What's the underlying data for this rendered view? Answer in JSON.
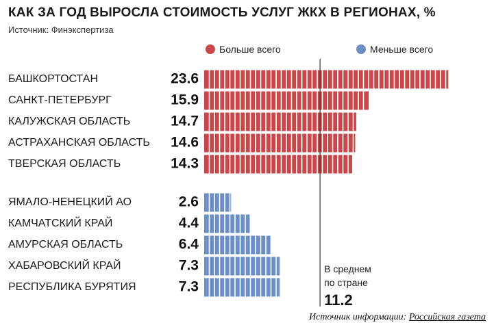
{
  "header": {
    "title": "КАК ЗА ГОД ВЫРОСЛА СТОИМОСТЬ УСЛУГ ЖКХ В РЕГИОНАХ, %",
    "source": "Источник: Финэкспертиза"
  },
  "legend": {
    "most": {
      "label": "Больше всего",
      "color": "#c8474b"
    },
    "least": {
      "label": "Меньше всего",
      "color": "#6b8fc4"
    }
  },
  "average": {
    "label_line1": "В среднем",
    "label_line2": "по стране",
    "value": "11.2"
  },
  "footer": {
    "prefix": "Источник информации: ",
    "link": "Российская газета"
  },
  "chart_data": {
    "type": "bar",
    "orientation": "horizontal",
    "title": "КАК ЗА ГОД ВЫРОСЛА СТОИМОСТЬ УСЛУГ ЖКХ В РЕГИОНАХ, %",
    "xlim": [
      0,
      24
    ],
    "reference_line": {
      "value": 11.2
    },
    "series": [
      {
        "name": "Больше всего",
        "color": "#c8474b",
        "categories": [
          "БАШКОРТОСТАН",
          "САНКТ-ПЕТЕРБУРГ",
          "КАЛУЖСКАЯ ОБЛАСТЬ",
          "АСТРАХАНСКАЯ ОБЛАСТЬ",
          "ТВЕРСКАЯ ОБЛАСТЬ"
        ],
        "values": [
          23.6,
          15.9,
          14.7,
          14.6,
          14.3
        ],
        "value_labels": [
          "23.6",
          "15.9",
          "14.7",
          "14.6",
          "14.3"
        ]
      },
      {
        "name": "Меньше всего",
        "color": "#6b8fc4",
        "categories": [
          "ЯМАЛО-НЕНЕЦКИЙ АО",
          "КАМЧАТСКИЙ КРАЙ",
          "АМУРСКАЯ ОБЛАСТЬ",
          "ХАБАРОВСКИЙ КРАЙ",
          "РЕСПУБЛИКА БУРЯТИЯ"
        ],
        "values": [
          2.6,
          4.4,
          6.4,
          7.3,
          7.3
        ],
        "value_labels": [
          "2.6",
          "4.4",
          "6.4",
          "7.3",
          "7.3"
        ]
      }
    ]
  }
}
